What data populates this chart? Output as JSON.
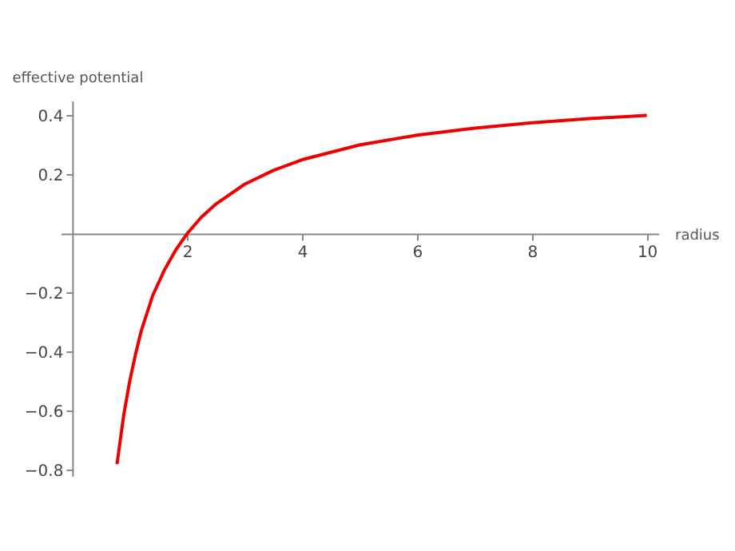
{
  "chart_data": {
    "type": "line",
    "xlabel": "radius",
    "ylabel": "effective potential",
    "x": [
      0.78,
      0.85,
      0.9,
      1,
      1.1,
      1.2,
      1.4,
      1.6,
      1.8,
      2,
      2.25,
      2.5,
      3,
      3.5,
      4,
      5,
      6,
      7,
      8,
      9,
      10
    ],
    "series": [
      {
        "color": "#ee0000",
        "values": [
          -0.78,
          -0.68,
          -0.61,
          -0.5,
          -0.41,
          -0.33,
          -0.21,
          -0.125,
          -0.056,
          0,
          0.056,
          0.1,
          0.167,
          0.214,
          0.25,
          0.3,
          0.333,
          0.357,
          0.375,
          0.389,
          0.4
        ]
      }
    ],
    "xlim": [
      -0.2,
      10.2
    ],
    "ylim": [
      -0.82,
      0.45
    ],
    "xticks": [
      2,
      4,
      6,
      8,
      10
    ],
    "yticks": [
      -0.8,
      -0.6,
      -0.4,
      -0.2,
      0.2,
      0.4
    ],
    "grid": false,
    "marker": "none",
    "line_style": "solid"
  }
}
